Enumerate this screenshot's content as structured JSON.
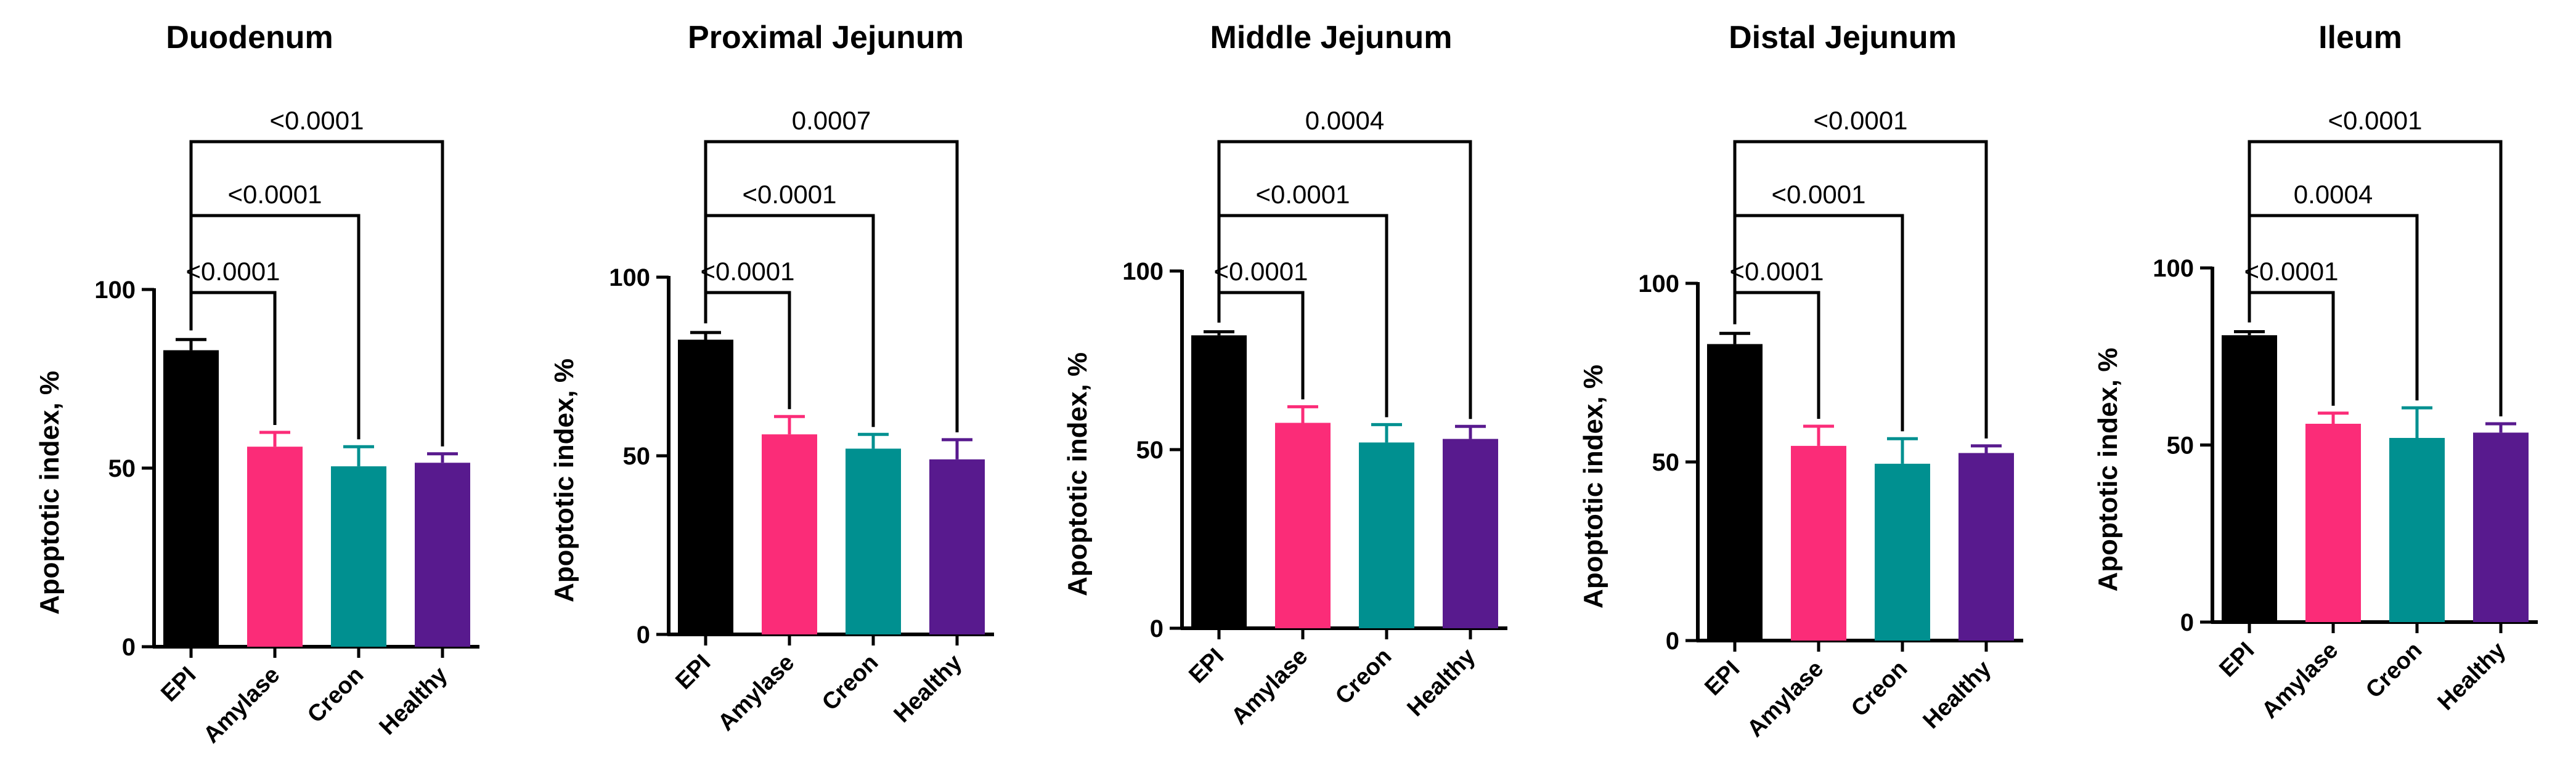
{
  "colors": {
    "EPI": "#000000",
    "Amylase": "#fb2c78",
    "Creon": "#009090",
    "Healthy": "#581a8e",
    "axis": "#000000"
  },
  "chart_data": [
    {
      "type": "bar",
      "title": "Duodenum",
      "ylabel": "Apoptotic index, %",
      "xlabel": "",
      "categories": [
        "EPI",
        "Amylase",
        "Creon",
        "Healthy"
      ],
      "values": [
        83,
        56,
        50.5,
        51.5
      ],
      "errors": [
        3,
        4,
        5.5,
        2.5
      ],
      "ylim": [
        0,
        100
      ],
      "yticks": [
        "0",
        "50",
        "100"
      ],
      "comparisons": [
        {
          "from": "EPI",
          "to": "Amylase",
          "p": "<0.0001"
        },
        {
          "from": "EPI",
          "to": "Creon",
          "p": "<0.0001"
        },
        {
          "from": "EPI",
          "to": "Healthy",
          "p": "<0.0001"
        }
      ]
    },
    {
      "type": "bar",
      "title": "Proximal Jejunum",
      "ylabel": "Apoptotic index, %",
      "xlabel": "",
      "categories": [
        "EPI",
        "Amylase",
        "Creon",
        "Healthy"
      ],
      "values": [
        82.5,
        56,
        52,
        49
      ],
      "errors": [
        2,
        5,
        4,
        5.5
      ],
      "ylim": [
        0,
        100
      ],
      "yticks": [
        "0",
        "50",
        "100"
      ],
      "comparisons": [
        {
          "from": "EPI",
          "to": "Amylase",
          "p": "<0.0001"
        },
        {
          "from": "EPI",
          "to": "Creon",
          "p": "<0.0001"
        },
        {
          "from": "EPI",
          "to": "Healthy",
          "p": "0.0007"
        }
      ]
    },
    {
      "type": "bar",
      "title": "Middle Jejunum",
      "ylabel": "Apoptotic index, %",
      "xlabel": "",
      "categories": [
        "EPI",
        "Amylase",
        "Creon",
        "Healthy"
      ],
      "values": [
        82,
        57.5,
        52,
        53
      ],
      "errors": [
        1,
        4.5,
        5,
        3.5
      ],
      "ylim": [
        0,
        100
      ],
      "yticks": [
        "0",
        "50",
        "100"
      ],
      "comparisons": [
        {
          "from": "EPI",
          "to": "Amylase",
          "p": "<0.0001"
        },
        {
          "from": "EPI",
          "to": "Creon",
          "p": "<0.0001"
        },
        {
          "from": "EPI",
          "to": "Healthy",
          "p": "0.0004"
        }
      ]
    },
    {
      "type": "bar",
      "title": "Distal Jejunum",
      "ylabel": "Apoptotic index, %",
      "xlabel": "",
      "categories": [
        "EPI",
        "Amylase",
        "Creon",
        "Healthy"
      ],
      "values": [
        83,
        54.5,
        49.5,
        52.5
      ],
      "errors": [
        3,
        5.5,
        7,
        2
      ],
      "ylim": [
        0,
        100
      ],
      "yticks": [
        "0",
        "50",
        "100"
      ],
      "comparisons": [
        {
          "from": "EPI",
          "to": "Amylase",
          "p": "<0.0001"
        },
        {
          "from": "EPI",
          "to": "Creon",
          "p": "<0.0001"
        },
        {
          "from": "EPI",
          "to": "Healthy",
          "p": "<0.0001"
        }
      ]
    },
    {
      "type": "bar",
      "title": "Ileum",
      "ylabel": "Apoptotic index, %",
      "xlabel": "",
      "categories": [
        "EPI",
        "Amylase",
        "Creon",
        "Healthy"
      ],
      "values": [
        81,
        56,
        52,
        53.5
      ],
      "errors": [
        1,
        3,
        8.5,
        2.5
      ],
      "ylim": [
        0,
        100
      ],
      "yticks": [
        "0",
        "50",
        "100"
      ],
      "comparisons": [
        {
          "from": "EPI",
          "to": "Amylase",
          "p": "<0.0001"
        },
        {
          "from": "EPI",
          "to": "Creon",
          "p": "0.0004"
        },
        {
          "from": "EPI",
          "to": "Healthy",
          "p": "<0.0001"
        }
      ]
    }
  ]
}
